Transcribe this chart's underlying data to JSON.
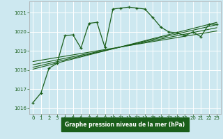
{
  "title": "Graphe pression niveau de la mer (hPa)",
  "xlim": [
    -0.5,
    23.5
  ],
  "ylim": [
    1015.7,
    1021.6
  ],
  "yticks": [
    1016,
    1017,
    1018,
    1019,
    1020,
    1021
  ],
  "xticks": [
    0,
    1,
    2,
    3,
    4,
    5,
    6,
    7,
    8,
    9,
    10,
    11,
    12,
    13,
    14,
    15,
    16,
    17,
    18,
    19,
    20,
    21,
    22,
    23
  ],
  "bg_color": "#cde8f0",
  "grid_color": "#ffffff",
  "line_color": "#1a5e1a",
  "main_line": [
    [
      0,
      1016.3
    ],
    [
      1,
      1016.8
    ],
    [
      2,
      1018.1
    ],
    [
      3,
      1018.35
    ],
    [
      4,
      1019.8
    ],
    [
      5,
      1019.85
    ],
    [
      6,
      1019.15
    ],
    [
      7,
      1020.45
    ],
    [
      8,
      1020.5
    ],
    [
      9,
      1019.2
    ],
    [
      10,
      1021.2
    ],
    [
      11,
      1021.25
    ],
    [
      12,
      1021.3
    ],
    [
      13,
      1021.25
    ],
    [
      14,
      1021.2
    ],
    [
      15,
      1020.75
    ],
    [
      16,
      1020.25
    ],
    [
      17,
      1020.0
    ],
    [
      18,
      1019.95
    ],
    [
      19,
      1019.8
    ],
    [
      20,
      1020.0
    ],
    [
      21,
      1019.75
    ],
    [
      22,
      1020.4
    ],
    [
      23,
      1020.4
    ]
  ],
  "linear_lines": [
    [
      [
        0,
        1018.05
      ],
      [
        23,
        1020.5
      ]
    ],
    [
      [
        0,
        1018.15
      ],
      [
        23,
        1020.38
      ]
    ],
    [
      [
        0,
        1018.28
      ],
      [
        23,
        1020.22
      ]
    ],
    [
      [
        0,
        1018.45
      ],
      [
        23,
        1020.05
      ]
    ]
  ]
}
